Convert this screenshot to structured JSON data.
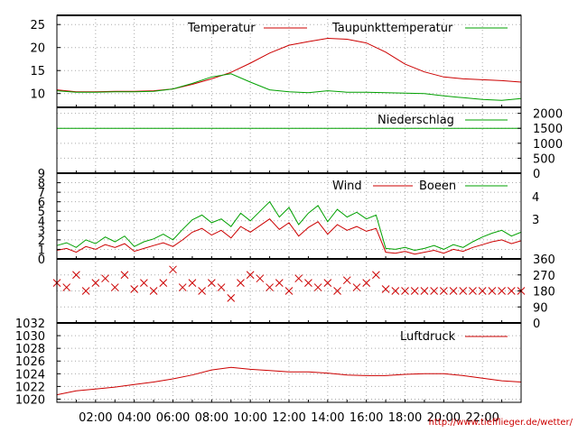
{
  "credit": "http://www.tiefflieger.de/wetter/",
  "colors": {
    "red": "#cc0000",
    "green": "#00a000",
    "grid": "#aaaaaa",
    "frame": "#000000"
  },
  "x_axis": {
    "range_hours": [
      0,
      24
    ],
    "tick_labels": [
      "02:00",
      "04:00",
      "06:00",
      "08:00",
      "10:00",
      "12:00",
      "14:00",
      "16:00",
      "18:00",
      "20:00",
      "22:00"
    ]
  },
  "chart_data": [
    {
      "type": "line",
      "panel": "temperature",
      "legend_position": "top-right",
      "grid": true,
      "ylim": [
        7,
        27
      ],
      "yticks": [
        "10",
        "15",
        "20",
        "25"
      ],
      "x": [
        0,
        1,
        2,
        3,
        4,
        5,
        6,
        7,
        8,
        9,
        10,
        11,
        12,
        13,
        14,
        15,
        16,
        17,
        18,
        19,
        20,
        21,
        22,
        23,
        24
      ],
      "series": [
        {
          "name": "Temperatur",
          "color": "#cc0000",
          "values": [
            10.8,
            10.4,
            10.4,
            10.5,
            10.5,
            10.6,
            11.0,
            12.0,
            13.2,
            14.6,
            16.6,
            18.8,
            20.5,
            21.3,
            22.0,
            21.8,
            21.0,
            19.0,
            16.4,
            14.7,
            13.6,
            13.2,
            13.0,
            12.8,
            12.5
          ]
        },
        {
          "name": "Taupunkttemperatur",
          "color": "#00a000",
          "values": [
            10.6,
            10.3,
            10.3,
            10.4,
            10.4,
            10.5,
            11.0,
            12.2,
            13.6,
            14.3,
            12.5,
            10.8,
            10.4,
            10.2,
            10.6,
            10.3,
            10.3,
            10.2,
            10.1,
            10.0,
            9.5,
            9.1,
            8.7,
            8.5,
            8.9
          ]
        }
      ]
    },
    {
      "type": "line",
      "panel": "precipitation",
      "legend_position": "top-right",
      "grid": true,
      "ylim": [
        0,
        2200
      ],
      "yticks": [
        "0",
        "500",
        "1000",
        "1500",
        "2000"
      ],
      "x": [
        0,
        24
      ],
      "series": [
        {
          "name": "Niederschlag",
          "color": "#00a000",
          "values": [
            1500,
            1500
          ]
        }
      ]
    },
    {
      "type": "line",
      "panel": "wind",
      "legend_position": "top-right",
      "grid": true,
      "ylim": [
        0,
        9
      ],
      "yticks_left": [
        "0",
        "1",
        "2",
        "3",
        "4",
        "5",
        "6",
        "7",
        "8",
        "9"
      ],
      "yticks_right": [
        "3",
        "4"
      ],
      "x": [
        0,
        0.5,
        1,
        1.5,
        2,
        2.5,
        3,
        3.5,
        4,
        4.5,
        5,
        5.5,
        6,
        6.5,
        7,
        7.5,
        8,
        8.5,
        9,
        9.5,
        10,
        10.5,
        11,
        11.5,
        12,
        12.5,
        13,
        13.5,
        14,
        14.5,
        15,
        15.5,
        16,
        16.5,
        17,
        17.5,
        18,
        18.5,
        19,
        19.5,
        20,
        20.5,
        21,
        21.5,
        22,
        22.5,
        23,
        23.5,
        24
      ],
      "series": [
        {
          "name": "Wind",
          "color": "#cc0000",
          "values": [
            0.9,
            1.1,
            0.7,
            1.3,
            1.0,
            1.5,
            1.2,
            1.6,
            0.8,
            1.1,
            1.4,
            1.7,
            1.3,
            2.0,
            2.8,
            3.2,
            2.5,
            3.0,
            2.2,
            3.4,
            2.8,
            3.5,
            4.2,
            3.1,
            3.8,
            2.4,
            3.3,
            3.9,
            2.6,
            3.6,
            3.0,
            3.4,
            2.9,
            3.2,
            0.7,
            0.6,
            0.8,
            0.5,
            0.7,
            0.9,
            0.6,
            1.0,
            0.8,
            1.2,
            1.5,
            1.8,
            2.0,
            1.6,
            1.9
          ]
        },
        {
          "name": "Boeen",
          "color": "#00a000",
          "values": [
            1.4,
            1.7,
            1.2,
            2.0,
            1.6,
            2.3,
            1.8,
            2.4,
            1.3,
            1.8,
            2.1,
            2.6,
            2.0,
            3.1,
            4.1,
            4.6,
            3.8,
            4.2,
            3.4,
            4.8,
            4.0,
            5.0,
            6.0,
            4.4,
            5.4,
            3.6,
            4.8,
            5.6,
            3.9,
            5.2,
            4.4,
            4.9,
            4.2,
            4.6,
            1.1,
            1.0,
            1.2,
            0.9,
            1.1,
            1.4,
            1.0,
            1.5,
            1.2,
            1.8,
            2.3,
            2.7,
            3.0,
            2.4,
            2.8
          ]
        }
      ]
    },
    {
      "type": "scatter",
      "panel": "wind-direction",
      "grid": true,
      "ylim": [
        0,
        360
      ],
      "yticks": [
        "0",
        "90",
        "180",
        "270",
        "360"
      ],
      "marker": "x",
      "x": [
        0,
        0.5,
        1,
        1.5,
        2,
        2.5,
        3,
        3.5,
        4,
        4.5,
        5,
        5.5,
        6,
        6.5,
        7,
        7.5,
        8,
        8.5,
        9,
        9.5,
        10,
        10.5,
        11,
        11.5,
        12,
        12.5,
        13,
        13.5,
        14,
        14.5,
        15,
        15.5,
        16,
        16.5,
        17,
        17.5,
        18,
        18.5,
        19,
        19.5,
        20,
        20.5,
        21,
        21.5,
        22,
        22.5,
        23,
        23.5,
        24
      ],
      "series": [
        {
          "name": "",
          "color": "#cc0000",
          "values": [
            225,
            200,
            270,
            180,
            225,
            250,
            200,
            270,
            190,
            225,
            180,
            225,
            300,
            200,
            225,
            180,
            225,
            200,
            140,
            225,
            270,
            250,
            200,
            225,
            180,
            250,
            225,
            200,
            225,
            180,
            240,
            200,
            225,
            270,
            190,
            180,
            180,
            180,
            180,
            180,
            180,
            180,
            180,
            180,
            180,
            180,
            180,
            180,
            180
          ]
        }
      ]
    },
    {
      "type": "line",
      "panel": "pressure",
      "legend_position": "top-right",
      "grid": true,
      "ylim": [
        1019.5,
        1032
      ],
      "yticks": [
        "1020",
        "1022",
        "1024",
        "1026",
        "1028",
        "1030",
        "1032"
      ],
      "x": [
        0,
        1,
        2,
        3,
        4,
        5,
        6,
        7,
        8,
        9,
        10,
        11,
        12,
        13,
        14,
        15,
        16,
        17,
        18,
        19,
        20,
        21,
        22,
        23,
        24
      ],
      "series": [
        {
          "name": "Luftdruck",
          "color": "#cc0000",
          "values": [
            1020.7,
            1021.3,
            1021.6,
            1021.9,
            1022.3,
            1022.7,
            1023.2,
            1023.8,
            1024.6,
            1025.0,
            1024.7,
            1024.5,
            1024.3,
            1024.3,
            1024.1,
            1023.8,
            1023.7,
            1023.7,
            1023.9,
            1024.0,
            1024.0,
            1023.7,
            1023.3,
            1022.9,
            1022.7
          ]
        }
      ]
    }
  ]
}
